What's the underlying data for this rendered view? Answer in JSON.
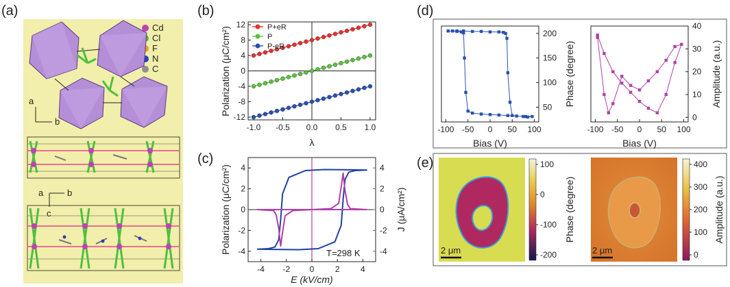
{
  "figure": {
    "panel_labels": [
      "(a)",
      "(b)",
      "(c)",
      "(d)",
      "(e)"
    ]
  },
  "panel_a": {
    "legend": [
      {
        "label": "Cd",
        "color": "#c040b8"
      },
      {
        "label": "Cl",
        "color": "#4cc040"
      },
      {
        "label": "F",
        "color": "#e8a020"
      },
      {
        "label": "N",
        "color": "#2840c0"
      },
      {
        "label": "C",
        "color": "#909090"
      }
    ],
    "axes_top": {
      "a": "a",
      "b": "b"
    },
    "axes_bottom": {
      "a": "a",
      "b": "b",
      "c": "c"
    },
    "background": "#f2eeab",
    "octahedron_color": "#b48fd8"
  },
  "chart_data": [
    {
      "id": "b",
      "type": "line",
      "xlabel": "λ",
      "ylabel": "Polarization (μC/cm²)",
      "xlim": [
        -1.0,
        1.0
      ],
      "ylim": [
        -12,
        12
      ],
      "xticks": [
        "-1.0",
        "-0.5",
        "0.0",
        "0.5",
        "1.0"
      ],
      "yticks": [
        "-12",
        "-8",
        "-4",
        "0",
        "4",
        "8",
        "12"
      ],
      "x": [
        -1.0,
        -0.9,
        -0.8,
        -0.7,
        -0.6,
        -0.5,
        -0.4,
        -0.3,
        -0.2,
        -0.1,
        0.0,
        0.1,
        0.2,
        0.3,
        0.4,
        0.5,
        0.6,
        0.7,
        0.8,
        0.9,
        1.0
      ],
      "series": [
        {
          "name": "P+eR",
          "color": "#e53030",
          "values": [
            4.0,
            4.4,
            4.8,
            5.2,
            5.6,
            6.0,
            6.4,
            6.8,
            7.2,
            7.6,
            8.0,
            8.4,
            8.8,
            9.2,
            9.6,
            10.0,
            10.4,
            10.8,
            11.2,
            11.6,
            12.0
          ]
        },
        {
          "name": "P",
          "color": "#5cc040",
          "values": [
            -4.0,
            -3.6,
            -3.2,
            -2.8,
            -2.4,
            -2.0,
            -1.6,
            -1.2,
            -0.8,
            -0.4,
            0.0,
            0.4,
            0.8,
            1.2,
            1.6,
            2.0,
            2.4,
            2.8,
            3.2,
            3.6,
            4.0
          ]
        },
        {
          "name": "P-eR",
          "color": "#2850b0",
          "values": [
            -12.0,
            -11.6,
            -11.2,
            -10.8,
            -10.4,
            -10.0,
            -9.6,
            -9.2,
            -8.8,
            -8.4,
            -8.0,
            -7.6,
            -7.2,
            -6.8,
            -6.4,
            -6.0,
            -5.6,
            -5.2,
            -4.8,
            -4.4,
            -4.0
          ]
        }
      ]
    },
    {
      "id": "c",
      "type": "line",
      "xlabel": "E (kV/cm)",
      "ylabel_left": "Polarization (μC/cm²)",
      "ylabel_right": "J (μA/cm²)",
      "annotation": "T=298 K",
      "xlim": [
        -5,
        5
      ],
      "ylim": [
        -5,
        5
      ],
      "xticks": [
        "-4",
        "-2",
        "0",
        "2",
        "4"
      ],
      "yticks_left": [
        "-4",
        "-2",
        "0",
        "2",
        "4"
      ],
      "yticks_right": [
        "-4",
        "-2",
        "0",
        "2",
        "4"
      ],
      "series": [
        {
          "name": "Polarization",
          "color": "#2040a0",
          "x": [
            -4.3,
            -3.4,
            -2.9,
            -2.6,
            -2.45,
            -2.3,
            -1.8,
            -0.5,
            1.0,
            3.0,
            4.3,
            3.4,
            2.9,
            2.6,
            2.45,
            2.3,
            1.8,
            0.5,
            -1.0,
            -3.0,
            -4.3
          ],
          "y": [
            -3.8,
            -3.75,
            -3.6,
            -2.9,
            -1.0,
            1.5,
            3.1,
            3.75,
            3.85,
            3.82,
            3.8,
            3.75,
            3.6,
            2.9,
            1.0,
            -1.5,
            -3.1,
            -3.75,
            -3.85,
            -3.82,
            -3.8
          ]
        },
        {
          "name": "Current density",
          "color": "#b040a8",
          "x": [
            -4.3,
            -3.0,
            -2.8,
            -2.6,
            -2.45,
            -2.3,
            -2.1,
            -1.5,
            0.0,
            4.3,
            3.0,
            2.8,
            2.6,
            2.45,
            2.3,
            2.1,
            1.5,
            0.0,
            -4.3
          ],
          "y": [
            0.0,
            -0.1,
            -0.5,
            -1.8,
            -3.5,
            -2.2,
            -0.6,
            -0.1,
            0.0,
            0.0,
            0.1,
            0.5,
            1.8,
            3.5,
            2.2,
            0.6,
            0.1,
            0.0,
            0.0
          ]
        }
      ]
    },
    {
      "id": "d-phase",
      "type": "scatter",
      "xlabel": "Bias (V)",
      "ylabel": "Phase (degree)",
      "xlim": [
        -110,
        110
      ],
      "ylim": [
        20,
        215
      ],
      "xticks": [
        "-100",
        "-50",
        "0",
        "50",
        "100"
      ],
      "yticks": [
        "50",
        "100",
        "150",
        "200"
      ],
      "series": [
        {
          "name": "Phase",
          "color": "#2850b0",
          "x": [
            -95,
            -85,
            -75,
            -65,
            -60,
            -58,
            -55,
            -50,
            -40,
            -20,
            0,
            20,
            40,
            60,
            80,
            95,
            85,
            75,
            50,
            45,
            40,
            38,
            35,
            30,
            20,
            0,
            -20,
            -40,
            -60,
            -75,
            -85,
            -95
          ],
          "y": [
            205,
            205,
            204,
            203,
            201,
            150,
            80,
            42,
            38,
            36,
            35,
            34,
            33,
            32,
            31,
            31,
            30,
            31,
            33,
            60,
            120,
            190,
            200,
            202,
            203,
            203,
            204,
            204,
            205,
            205,
            205,
            205
          ]
        }
      ]
    },
    {
      "id": "d-amplitude",
      "type": "scatter",
      "xlabel": "Bias (V)",
      "ylabel": "Amplitude (a.u.)",
      "xlim": [
        -110,
        110
      ],
      "ylim": [
        -2,
        40
      ],
      "xticks": [
        "-100",
        "-50",
        "0",
        "50",
        "100"
      ],
      "yticks": [
        "0",
        "10",
        "20",
        "30",
        "40"
      ],
      "series": [
        {
          "name": "Amplitude",
          "color": "#b040a8",
          "x": [
            -95,
            -80,
            -60,
            -40,
            -20,
            0,
            20,
            40,
            60,
            80,
            95,
            80,
            60,
            40,
            20,
            0,
            -20,
            -40,
            -60,
            -70,
            -80,
            -95
          ],
          "y": [
            36,
            28,
            20,
            15,
            11,
            7,
            4,
            2,
            10,
            24,
            32,
            31,
            25,
            20,
            16,
            12,
            14,
            18,
            6,
            2,
            10,
            35
          ]
        }
      ]
    }
  ],
  "panel_e": {
    "phase_colorbar": {
      "label": "Phase (degree)",
      "ticks": [
        "100",
        "0",
        "-100",
        "-200"
      ]
    },
    "amplitude_colorbar": {
      "label": "Amplitude (a.u.)",
      "ticks": [
        "400",
        "300",
        "200",
        "100",
        "0"
      ]
    },
    "scale_bar_left": "2 μm",
    "scale_bar_right": "2 μm"
  }
}
